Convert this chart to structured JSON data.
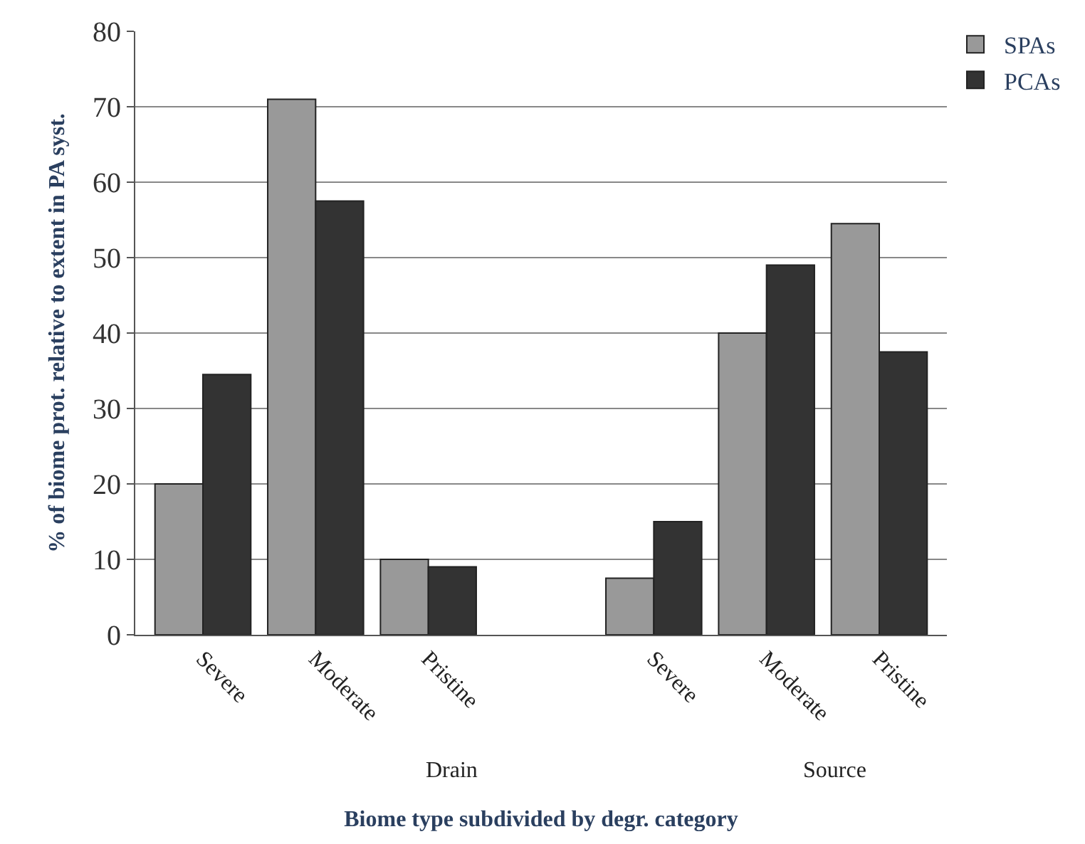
{
  "chart_data": {
    "type": "bar",
    "xlabel": "Biome type subdivided by degr. category",
    "ylabel": "% of biome prot. relative to extent in PA syst.",
    "categories": [
      "Severe",
      "Moderate",
      "Pristine",
      null,
      "Severe",
      "Moderate",
      "Pristine"
    ],
    "series": [
      {
        "name": "SPAs",
        "color": "#999999",
        "values": [
          20,
          71,
          10,
          null,
          7.5,
          40,
          54.5
        ]
      },
      {
        "name": "PCAs",
        "color": "#333333",
        "values": [
          34.5,
          57.5,
          9,
          null,
          15,
          49,
          37.5
        ]
      }
    ],
    "annotations": [
      "Drain",
      "Source"
    ],
    "ylim": [
      0,
      80
    ],
    "yticks": [
      0,
      10,
      20,
      30,
      40,
      50,
      60,
      70,
      80
    ],
    "grid": "y",
    "legend": "top right"
  }
}
